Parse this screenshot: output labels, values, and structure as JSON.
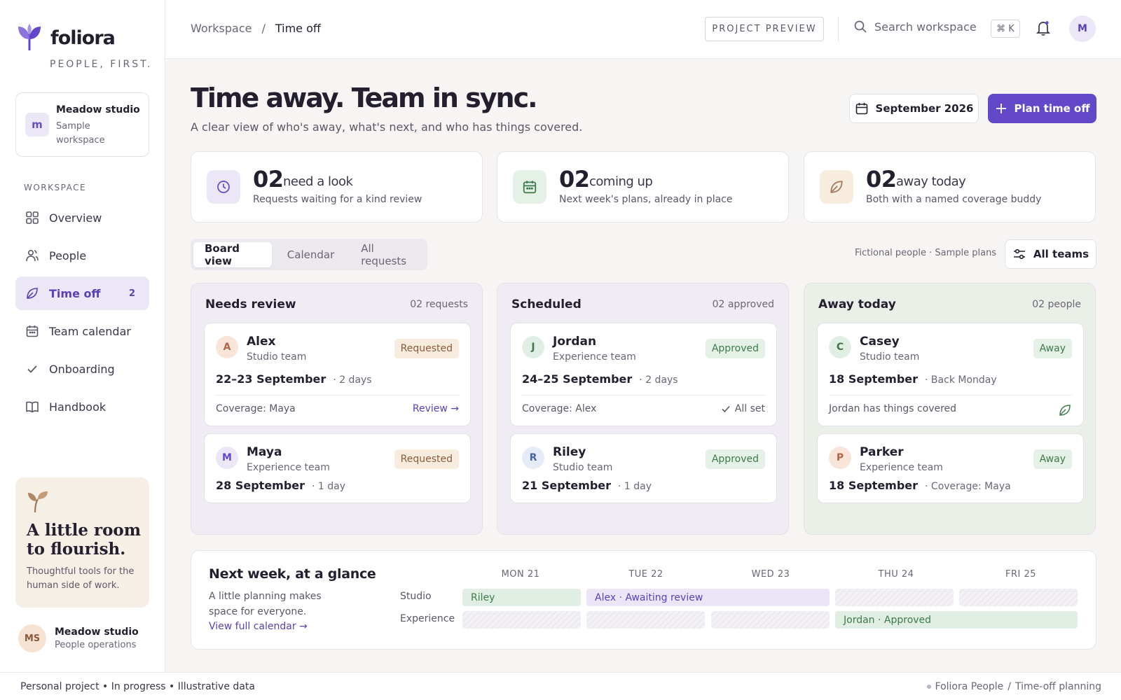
{
  "brand": {
    "name": "foliora",
    "tagline": "PEOPLE, FIRST."
  },
  "workspace_card": {
    "avatar": "m",
    "name": "Meadow studio",
    "sub": "Sample workspace"
  },
  "nav": {
    "heading": "WORKSPACE",
    "items": [
      {
        "label": "Overview",
        "icon": "grid-icon"
      },
      {
        "label": "People",
        "icon": "people-icon"
      },
      {
        "label": "Time off",
        "icon": "leaf-icon",
        "count": "2",
        "active": true
      },
      {
        "label": "Team calendar",
        "icon": "calendar-icon"
      },
      {
        "label": "Onboarding",
        "icon": "check-icon"
      },
      {
        "label": "Handbook",
        "icon": "book-icon"
      }
    ]
  },
  "promo": {
    "title": "A little room to flourish.",
    "text": "Thoughtful tools for the human side of work."
  },
  "user": {
    "initials": "MS",
    "name": "Meadow studio",
    "role": "People operations"
  },
  "topbar": {
    "crumb_root": "Workspace",
    "crumb_sep": "/",
    "crumb_current": "Time off",
    "project_preview": "PROJECT PREVIEW",
    "search_placeholder": "Search workspace",
    "shortcut": "⌘ K",
    "avatar": "M"
  },
  "header": {
    "title": "Time away. Team in sync.",
    "subtitle": "A clear view of who's away, what's next, and who has things covered.",
    "month_label": "September 2026",
    "plan_label": "Plan time off"
  },
  "stats": [
    {
      "num": "02",
      "label": "need a look",
      "sub": "Requests waiting for a kind review",
      "icon": "clock-icon"
    },
    {
      "num": "02",
      "label": "coming up",
      "sub": "Next week's plans, already in place",
      "icon": "calendar-icon"
    },
    {
      "num": "02",
      "label": "away today",
      "sub": "Both with a named coverage buddy",
      "icon": "leaf-icon"
    }
  ],
  "tabs": [
    "Board view",
    "Calendar",
    "All requests"
  ],
  "filters": {
    "note": "Fictional people · Sample plans",
    "teams_label": "All teams"
  },
  "columns": [
    {
      "title": "Needs review",
      "meta": "02 requests",
      "cards": [
        {
          "initial": "A",
          "name": "Alex",
          "team": "Studio team",
          "status": "Requested",
          "date": "22–23 September",
          "detail": "· 2 days",
          "footer": "Coverage: Maya",
          "action": "Review →"
        },
        {
          "initial": "M",
          "name": "Maya",
          "team": "Experience team",
          "status": "Requested",
          "date": "28 September",
          "detail": "· 1 day"
        }
      ]
    },
    {
      "title": "Scheduled",
      "meta": "02 approved",
      "cards": [
        {
          "initial": "J",
          "name": "Jordan",
          "team": "Experience team",
          "status": "Approved",
          "date": "24–25 September",
          "detail": "· 2 days",
          "footer": "Coverage: Alex",
          "action": "All set"
        },
        {
          "initial": "R",
          "name": "Riley",
          "team": "Studio team",
          "status": "Approved",
          "date": "21 September",
          "detail": "· 1 day"
        }
      ]
    },
    {
      "title": "Away today",
      "meta": "02 people",
      "cards": [
        {
          "initial": "C",
          "name": "Casey",
          "team": "Studio team",
          "status": "Away",
          "date": "18 September",
          "detail": "· Back Monday",
          "footer": "Jordan has things covered"
        },
        {
          "initial": "P",
          "name": "Parker",
          "team": "Experience team",
          "status": "Away",
          "date": "18 September",
          "detail": "· Coverage: Maya"
        }
      ]
    }
  ],
  "glance": {
    "title": "Next week, at a glance",
    "text": "A little planning makes space for everyone.",
    "link": "View full calendar →",
    "days": [
      "MON 21",
      "TUE 22",
      "WED 23",
      "THU 24",
      "FRI 25"
    ],
    "rows": [
      "Studio",
      "Experience"
    ],
    "bars": {
      "riley": "Riley",
      "alex": "Alex · Awaiting review",
      "jordan": "Jordan · Approved"
    }
  },
  "footer": {
    "left": "Personal project • In progress • Illustrative data",
    "right_a": "Foliora People",
    "right_sep": "/",
    "right_b": "Time-off planning"
  },
  "colors": {
    "accent": "#6247c9",
    "accent_soft": "#ece7f7",
    "green": "#3d7a4b",
    "amber": "#8a5a3a"
  }
}
